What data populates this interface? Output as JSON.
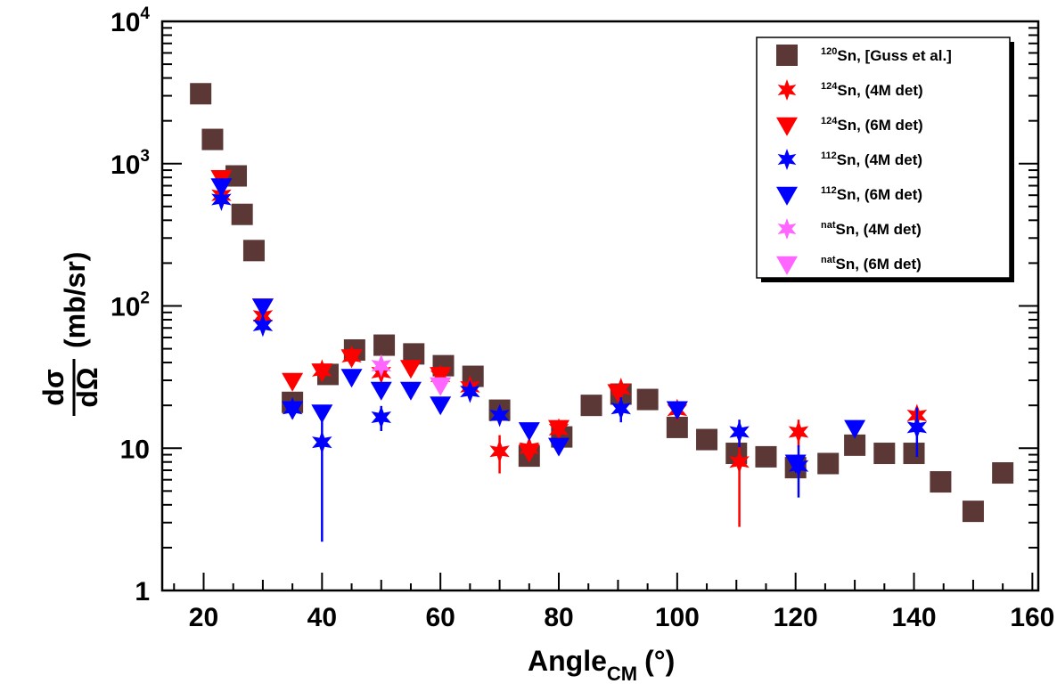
{
  "chart_data": {
    "type": "scatter",
    "title": "",
    "xlabel": {
      "main": "Angle",
      "sub": "CM",
      "unit": "(°)"
    },
    "ylabel": {
      "num": "dσ",
      "den": "dΩ",
      "unit": "(mb/sr)"
    },
    "xlim": [
      13,
      161
    ],
    "ylim": [
      1,
      10000
    ],
    "yscale": "log",
    "grid": false,
    "legend_position": "top-right",
    "x_ticks": [
      "20",
      "40",
      "60",
      "80",
      "100",
      "120",
      "140",
      "160"
    ],
    "y_ticks": [
      {
        "base": "1",
        "exp": ""
      },
      {
        "base": "10",
        "exp": ""
      },
      {
        "base": "10",
        "exp": "2"
      },
      {
        "base": "10",
        "exp": "3"
      },
      {
        "base": "10",
        "exp": "4"
      }
    ],
    "series": [
      {
        "name": "120Sn, [Guss et al.]",
        "mass": "120",
        "label": "Sn, [Guss et al.]",
        "marker": "square",
        "color": "#5b3836",
        "points": [
          [
            19.5,
            3100
          ],
          [
            21.5,
            1480
          ],
          [
            25.5,
            820
          ],
          [
            26.5,
            440
          ],
          [
            28.5,
            245
          ],
          [
            35,
            21
          ],
          [
            41,
            33
          ],
          [
            45.5,
            49
          ],
          [
            50.5,
            53
          ],
          [
            55.5,
            46
          ],
          [
            60.5,
            38
          ],
          [
            65.5,
            32
          ],
          [
            70,
            18.5
          ],
          [
            75,
            8.8
          ],
          [
            80.5,
            12
          ],
          [
            85.5,
            20
          ],
          [
            90.5,
            24
          ],
          [
            95,
            22
          ],
          [
            100,
            14
          ],
          [
            105,
            11.5
          ],
          [
            110,
            9.2
          ],
          [
            115,
            8.7
          ],
          [
            120,
            7.3
          ],
          [
            125.5,
            7.8
          ],
          [
            130,
            10.5
          ],
          [
            135,
            9.2
          ],
          [
            140,
            9.2
          ],
          [
            144.5,
            5.8
          ],
          [
            150,
            3.6
          ],
          [
            155,
            6.7
          ]
        ]
      },
      {
        "name": "124Sn, (4M det)",
        "mass": "124",
        "label": "Sn, (4M det)",
        "marker": "star",
        "color": "#ff0000",
        "points": [
          [
            23,
            600,
            0
          ],
          [
            30,
            85,
            0
          ],
          [
            40,
            35,
            0
          ],
          [
            45,
            44,
            0
          ],
          [
            50,
            34,
            0
          ],
          [
            60,
            32,
            0
          ],
          [
            65,
            27,
            0
          ],
          [
            70,
            9.5,
            0.3
          ],
          [
            75,
            10,
            0
          ],
          [
            80,
            13.5,
            0
          ],
          [
            90.5,
            26,
            0
          ],
          [
            100,
            18.5,
            0
          ],
          [
            110.5,
            8,
            0.65
          ],
          [
            120.5,
            13,
            0.22
          ],
          [
            140.5,
            17,
            0.15
          ]
        ]
      },
      {
        "name": "124Sn, (6M det)",
        "mass": "124",
        "label": "Sn, (6M det)",
        "marker": "triangle",
        "color": "#ff0000",
        "points": [
          [
            23,
            800
          ],
          [
            30,
            100
          ],
          [
            35,
            30
          ],
          [
            40,
            35
          ],
          [
            45,
            44
          ],
          [
            55,
            37
          ],
          [
            60,
            33
          ],
          [
            75,
            9.5
          ],
          [
            80,
            14
          ],
          [
            90,
            25
          ],
          [
            100,
            19
          ]
        ]
      },
      {
        "name": "112Sn, (4M det)",
        "mass": "112",
        "label": "Sn, (4M det)",
        "marker": "star",
        "color": "#0000ff",
        "points": [
          [
            23,
            560,
            0
          ],
          [
            30,
            73,
            0
          ],
          [
            35,
            19,
            0.15
          ],
          [
            40,
            11,
            0.8
          ],
          [
            50,
            16.5,
            0.2
          ],
          [
            65,
            25,
            0
          ],
          [
            70,
            17,
            0
          ],
          [
            90.5,
            19,
            0.2
          ],
          [
            110.5,
            13,
            0.22
          ],
          [
            120.5,
            7.5,
            0.4
          ],
          [
            140.5,
            14,
            0.38
          ]
        ]
      },
      {
        "name": "112Sn, (6M det)",
        "mass": "112",
        "label": "Sn, (6M det)",
        "marker": "triangle",
        "color": "#0000ff",
        "points": [
          [
            23,
            700
          ],
          [
            30,
            100
          ],
          [
            35,
            19
          ],
          [
            40,
            18
          ],
          [
            45,
            32
          ],
          [
            50,
            26
          ],
          [
            55,
            26
          ],
          [
            60,
            20.5
          ],
          [
            75,
            13.5
          ],
          [
            80,
            10.5
          ],
          [
            100,
            19
          ],
          [
            120,
            8
          ],
          [
            130,
            14
          ]
        ]
      },
      {
        "name": "natSn, (4M det)",
        "mass": "nat",
        "label": "Sn, (4M det)",
        "marker": "star",
        "color": "#ff66ff",
        "points": [
          [
            50,
            38,
            0
          ]
        ]
      },
      {
        "name": "natSn, (6M det)",
        "mass": "nat",
        "label": "Sn, (6M det)",
        "marker": "triangle",
        "color": "#ff66ff",
        "points": [
          [
            60,
            28
          ]
        ]
      }
    ]
  }
}
